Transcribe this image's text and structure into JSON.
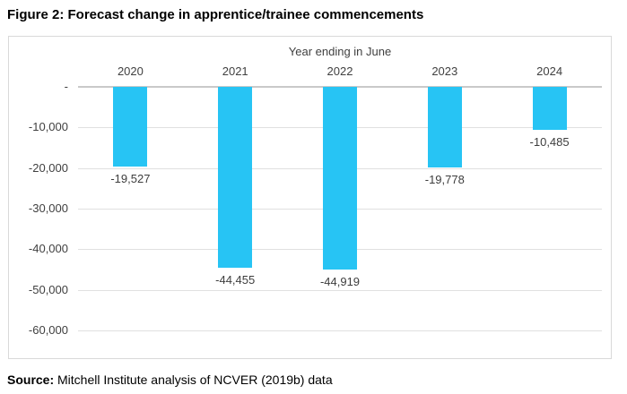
{
  "page": {
    "title": "Figure 2: Forecast change in apprentice/trainee commencements",
    "source_label": "Source:",
    "source_text": " Mitchell Institute analysis of NCVER (2019b) data"
  },
  "chart_data": {
    "type": "bar",
    "title": "Year ending in June",
    "categories": [
      "2020",
      "2021",
      "2022",
      "2023",
      "2024"
    ],
    "values": [
      -19527,
      -44455,
      -44919,
      -19778,
      -10485
    ],
    "data_labels": [
      "-19,527",
      "-44,455",
      "-44,919",
      "-19,778",
      "-10,485"
    ],
    "xlabel": "Year ending in June",
    "ylabel": "",
    "ylim": [
      -60000,
      0
    ],
    "y_ticks": [
      "-",
      "-10,000",
      "-20,000",
      "-30,000",
      "-40,000",
      "-50,000",
      "-60,000"
    ],
    "y_tick_values": [
      0,
      -10000,
      -20000,
      -30000,
      -40000,
      -50000,
      -60000
    ],
    "grid": true,
    "legend_position": "none",
    "bar_color": "#27c4f4",
    "gridline_color": "#e0e0e0",
    "zero_line_color": "#c9c9c9",
    "border_color": "#d9d9d9",
    "label_color": "#404040"
  }
}
